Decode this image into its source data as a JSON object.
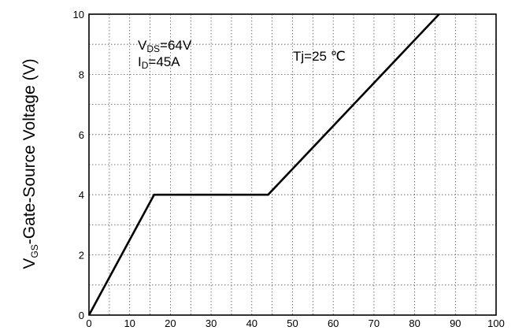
{
  "chart_data": {
    "type": "line",
    "xlabel": "",
    "ylabel": {
      "main": "V",
      "subscript": "GS",
      "rest": "-Gate-Source Voltage (V)"
    },
    "xlim": [
      0,
      100
    ],
    "ylim": [
      0,
      10
    ],
    "x_ticks": [
      "0",
      "10",
      "20",
      "30",
      "40",
      "50",
      "60",
      "70",
      "80",
      "90",
      "100"
    ],
    "y_ticks": [
      "0",
      "2",
      "4",
      "6",
      "8",
      "10"
    ],
    "grid": true,
    "series": [
      {
        "x": [
          0,
          16,
          44,
          86
        ],
        "y": [
          0,
          4.0,
          4.0,
          10.0
        ]
      }
    ],
    "annotations": {
      "vds": {
        "main": "V",
        "sub": "DS",
        "rest": "=64V"
      },
      "id": {
        "main": "I",
        "sub": "D",
        "rest": "=45A"
      },
      "tj": "Tj=25 ℃"
    }
  }
}
